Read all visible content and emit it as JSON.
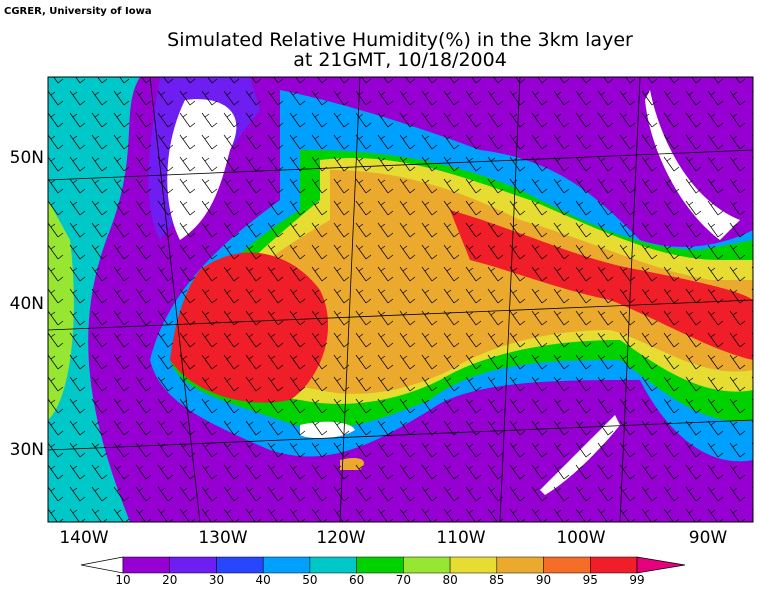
{
  "credit": "CGRER, University of Iowa",
  "title": {
    "line1": "Simulated Relative Humidity(%) in the 3km layer",
    "line2": "at 21GMT, 10/18/2004"
  },
  "lat_labels": [
    "50N",
    "40N",
    "30N"
  ],
  "lon_labels": [
    "140W",
    "130W",
    "120W",
    "110W",
    "100W",
    "90W"
  ],
  "colorbar": {
    "labels": [
      10,
      20,
      30,
      40,
      50,
      60,
      70,
      80,
      85,
      90,
      95,
      99
    ],
    "colors": [
      "#ffffff",
      "#9600d2",
      "#6e1ef0",
      "#2846ff",
      "#00a0ff",
      "#00c8c8",
      "#00d200",
      "#96e632",
      "#e6dc32",
      "#ebaa2d",
      "#f56e28",
      "#f01e28",
      "#e6007d"
    ]
  }
}
